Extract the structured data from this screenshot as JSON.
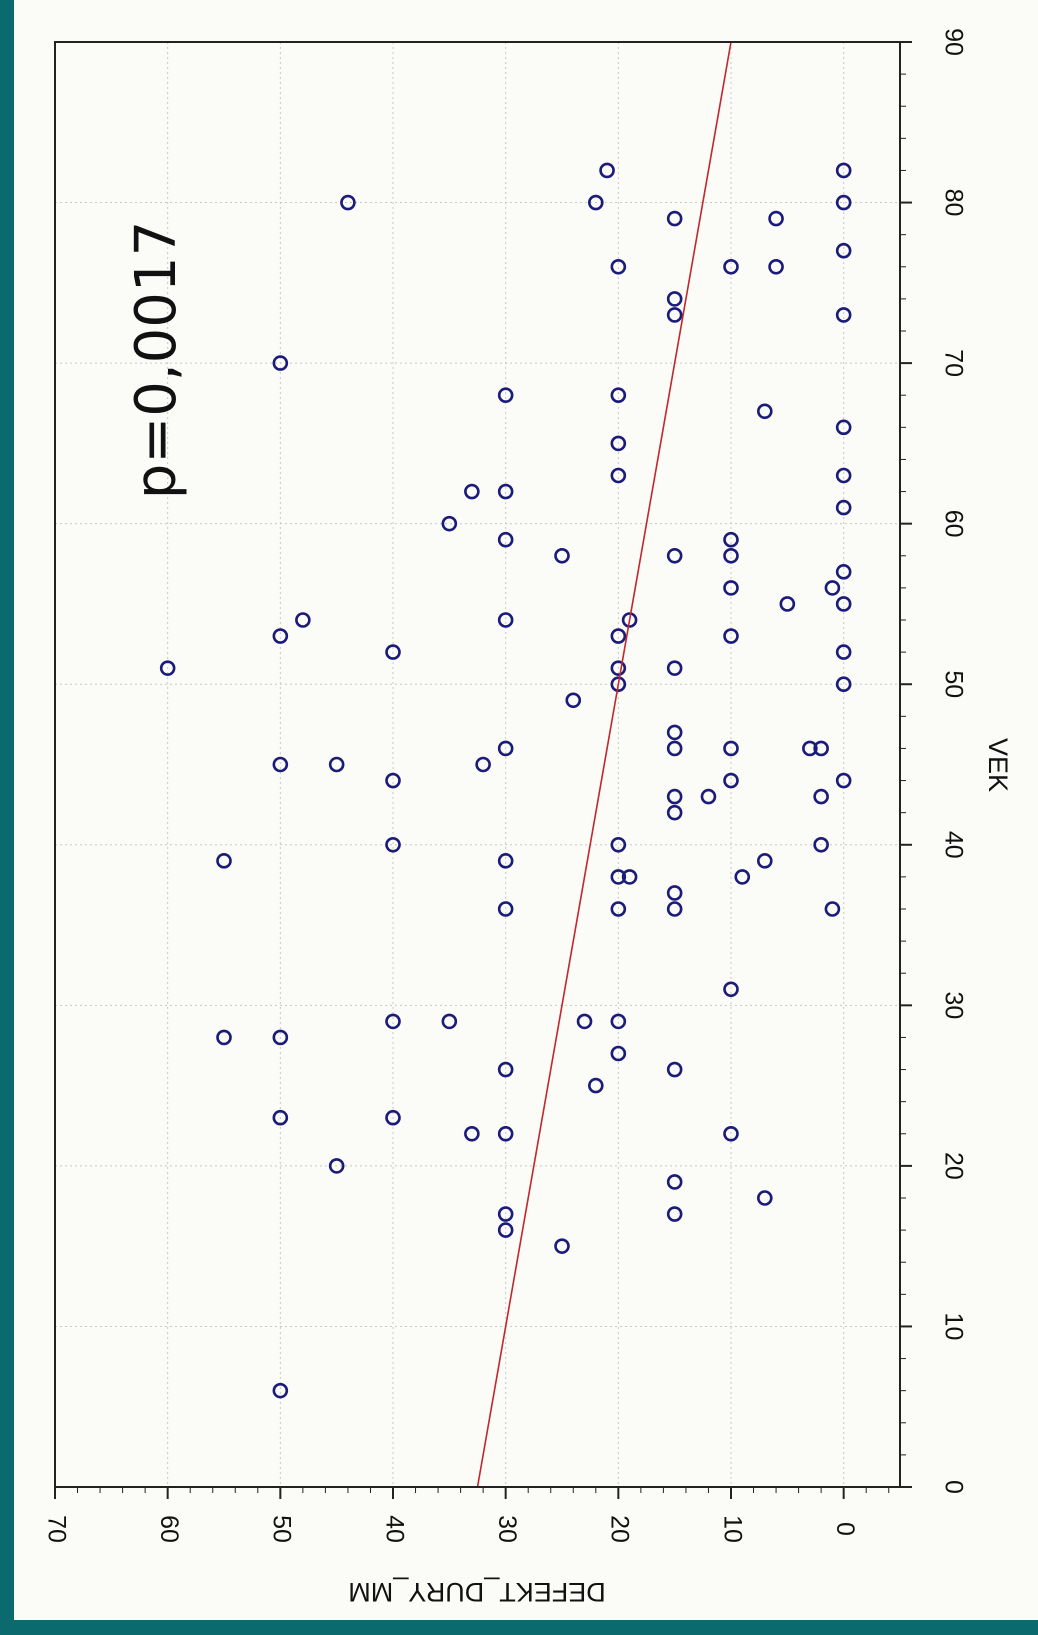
{
  "chart_data": {
    "type": "scatter",
    "orientation": "rotated 90 degrees clockwise",
    "xlabel": "VEK",
    "ylabel": "DEFEKT_DURY_MM",
    "annotation": "p=0,0017",
    "xlim": [
      0,
      90
    ],
    "ylim": [
      -5,
      70
    ],
    "x_ticks": [
      0,
      10,
      20,
      30,
      40,
      50,
      60,
      70,
      80,
      90
    ],
    "y_ticks": [
      0,
      10,
      20,
      30,
      40,
      50,
      60,
      70
    ],
    "grid": true,
    "marker": "open circle",
    "points": [
      [
        6,
        50
      ],
      [
        15,
        25
      ],
      [
        16,
        30
      ],
      [
        17,
        30
      ],
      [
        17,
        15
      ],
      [
        18,
        7
      ],
      [
        19,
        15
      ],
      [
        20,
        45
      ],
      [
        22,
        33
      ],
      [
        22,
        30
      ],
      [
        22,
        10
      ],
      [
        23,
        50
      ],
      [
        23,
        40
      ],
      [
        25,
        22
      ],
      [
        26,
        30
      ],
      [
        26,
        15
      ],
      [
        27,
        20
      ],
      [
        28,
        55
      ],
      [
        28,
        50
      ],
      [
        29,
        40
      ],
      [
        29,
        35
      ],
      [
        29,
        23
      ],
      [
        29,
        20
      ],
      [
        31,
        10
      ],
      [
        36,
        30
      ],
      [
        36,
        20
      ],
      [
        36,
        15
      ],
      [
        36,
        1
      ],
      [
        37,
        15
      ],
      [
        38,
        20
      ],
      [
        38,
        19
      ],
      [
        38,
        9
      ],
      [
        39,
        55
      ],
      [
        39,
        30
      ],
      [
        39,
        7
      ],
      [
        40,
        40
      ],
      [
        40,
        20
      ],
      [
        40,
        2
      ],
      [
        42,
        15
      ],
      [
        43,
        15
      ],
      [
        43,
        12
      ],
      [
        43,
        2
      ],
      [
        44,
        40
      ],
      [
        44,
        10
      ],
      [
        44,
        0
      ],
      [
        45,
        50
      ],
      [
        45,
        45
      ],
      [
        45,
        32
      ],
      [
        46,
        30
      ],
      [
        46,
        15
      ],
      [
        46,
        10
      ],
      [
        46,
        3
      ],
      [
        46,
        2
      ],
      [
        47,
        15
      ],
      [
        49,
        24
      ],
      [
        50,
        20
      ],
      [
        50,
        0
      ],
      [
        51,
        60
      ],
      [
        51,
        20
      ],
      [
        51,
        15
      ],
      [
        52,
        40
      ],
      [
        52,
        0
      ],
      [
        53,
        50
      ],
      [
        53,
        20
      ],
      [
        53,
        10
      ],
      [
        54,
        48
      ],
      [
        54,
        30
      ],
      [
        54,
        19
      ],
      [
        55,
        5
      ],
      [
        55,
        0
      ],
      [
        56,
        10
      ],
      [
        56,
        1
      ],
      [
        57,
        0
      ],
      [
        58,
        25
      ],
      [
        58,
        15
      ],
      [
        58,
        10
      ],
      [
        59,
        30
      ],
      [
        59,
        10
      ],
      [
        60,
        35
      ],
      [
        61,
        0
      ],
      [
        62,
        33
      ],
      [
        62,
        30
      ],
      [
        63,
        20
      ],
      [
        63,
        0
      ],
      [
        65,
        20
      ],
      [
        66,
        0
      ],
      [
        67,
        7
      ],
      [
        68,
        30
      ],
      [
        68,
        20
      ],
      [
        70,
        50
      ],
      [
        73,
        15
      ],
      [
        73,
        0
      ],
      [
        74,
        15
      ],
      [
        76,
        20
      ],
      [
        76,
        10
      ],
      [
        76,
        6
      ],
      [
        77,
        0
      ],
      [
        79,
        15
      ],
      [
        79,
        6
      ],
      [
        80,
        44
      ],
      [
        80,
        22
      ],
      [
        80,
        0
      ],
      [
        82,
        21
      ],
      [
        82,
        0
      ]
    ],
    "regression_line": {
      "x": [
        0,
        90
      ],
      "y": [
        32.5,
        10
      ]
    },
    "colors": {
      "points": "#1b1b7a",
      "line": "#c0282d",
      "background": "#fbfbf7",
      "border": "#0b6a6e"
    }
  }
}
